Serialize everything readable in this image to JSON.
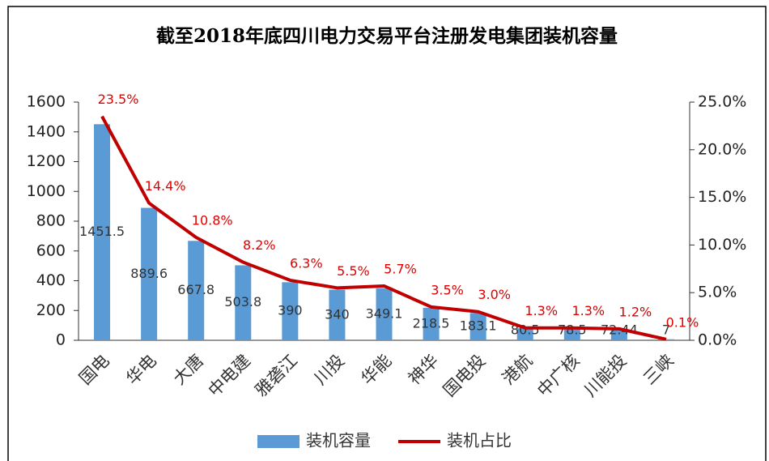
{
  "chart_data": {
    "type": "bar",
    "title": "截至2018年底四川电力交易平台注册发电集团装机容量",
    "categories": [
      "国电",
      "华电",
      "大唐",
      "中电建",
      "雅砻江",
      "川投",
      "华能",
      "神华",
      "国电投",
      "港航",
      "中广核",
      "川能投",
      "三峡"
    ],
    "series": [
      {
        "name": "装机容量",
        "type": "bar",
        "color": "#5b9bd5",
        "values": [
          1451.5,
          889.6,
          667.8,
          503.8,
          390,
          340,
          349.1,
          218.5,
          183.1,
          80.5,
          78.5,
          72.44,
          7
        ]
      },
      {
        "name": "装机占比",
        "type": "line",
        "axis": "y2",
        "color": "#c00000",
        "values": [
          23.5,
          14.4,
          10.8,
          8.2,
          6.3,
          5.5,
          5.7,
          3.5,
          3.0,
          1.3,
          1.3,
          1.2,
          0.1
        ],
        "value_labels": [
          "23.5%",
          "14.4%",
          "10.8%",
          "8.2%",
          "6.3%",
          "5.5%",
          "5.7%",
          "3.5%",
          "3.0%",
          "1.3%",
          "1.3%",
          "1.2%",
          "0.1%"
        ]
      }
    ],
    "ylim": [
      0,
      1600
    ],
    "yticks": [
      0,
      200,
      400,
      600,
      800,
      1000,
      1200,
      1400,
      1600
    ],
    "y2lim": [
      0,
      25
    ],
    "y2ticks": [
      {
        "value": 0,
        "label": "0.0%"
      },
      {
        "value": 5,
        "label": "5.0%"
      },
      {
        "value": 10,
        "label": "10.0%"
      },
      {
        "value": 15,
        "label": "15.0%"
      },
      {
        "value": 20,
        "label": "20.0%"
      },
      {
        "value": 25,
        "label": "25.0%"
      }
    ],
    "legend": "bottom"
  }
}
